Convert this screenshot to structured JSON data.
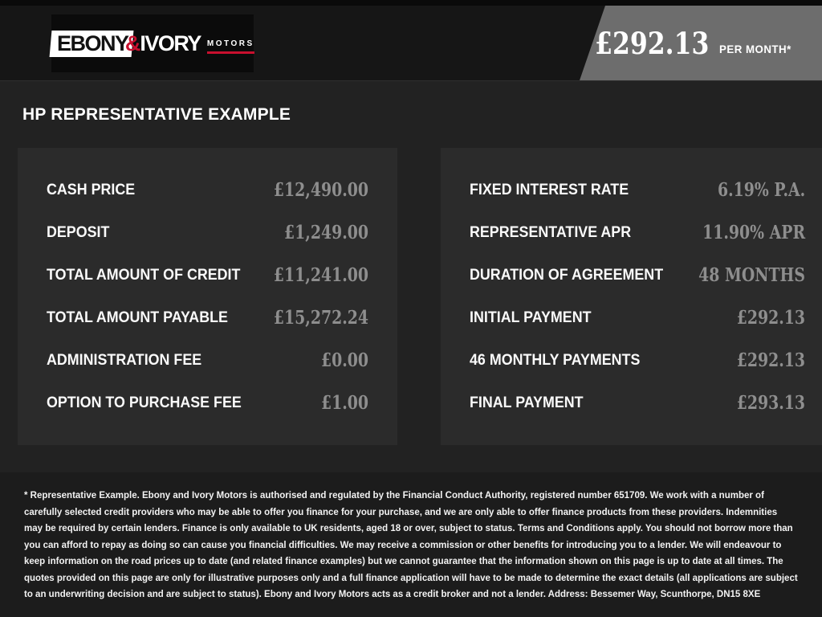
{
  "brand": {
    "name_primary": "EBONY",
    "ampersand": "&",
    "name_secondary": "IVORY",
    "name_suffix": "MOTORS"
  },
  "price_badge": {
    "amount": "£292.13",
    "period": "PER MONTH*"
  },
  "page_title": "HP REPRESENTATIVE EXAMPLE",
  "finance_left": {
    "rows": [
      {
        "label": "CASH PRICE",
        "value": "£12,490.00"
      },
      {
        "label": "DEPOSIT",
        "value": "£1,249.00"
      },
      {
        "label": "TOTAL AMOUNT OF CREDIT",
        "value": "£11,241.00"
      },
      {
        "label": "TOTAL AMOUNT PAYABLE",
        "value": "£15,272.24"
      },
      {
        "label": "ADMINISTRATION FEE",
        "value": "£0.00"
      },
      {
        "label": "OPTION TO PURCHASE FEE",
        "value": "£1.00"
      }
    ]
  },
  "finance_right": {
    "rows": [
      {
        "label": "FIXED INTEREST RATE",
        "value": "6.19% P.A."
      },
      {
        "label": "REPRESENTATIVE APR",
        "value": "11.90% APR"
      },
      {
        "label": "DURATION OF AGREEMENT",
        "value": "48 MONTHS"
      },
      {
        "label": "INITIAL PAYMENT",
        "value": "£292.13"
      },
      {
        "label": "46 MONTHLY PAYMENTS",
        "value": "£292.13"
      },
      {
        "label": "FINAL PAYMENT",
        "value": "£293.13"
      }
    ]
  },
  "disclaimer": "* Representative Example. Ebony and Ivory Motors is authorised and regulated by the Financial Conduct Authority, registered number 651709. We work with a number of carefully selected credit providers who may be able to offer you finance for your purchase, and we are only able to offer finance products from these providers. Indemnities may be required by certain lenders. Finance is only available to UK residents, aged 18 or over, subject to status. Terms and Conditions apply. You should not borrow more than you can afford to repay as doing so can cause you financial difficulties. We may receive a commission or other benefits for introducing you to a lender. We will endeavour to keep information on the road prices up to date (and related finance examples) but we cannot guarantee that the information shown on this page is up to date at all times. The quotes provided on this page are only for illustrative purposes only and a full finance application will have to be made to determine the exact details (all applications are subject to an underwriting decision and are subject to status). Ebony and Ivory Motors acts as a credit broker and not a lender. Address: Bessemer Way, Scunthorpe, DN15 8XE",
  "colors": {
    "accent_red": "#c8102e",
    "badge_gray": "#6d6d6d",
    "value_gray": "#8e8e8e",
    "header_bg": "#161616",
    "content_bg": "#222222",
    "panel_bg": "#2b2b2b",
    "disclaimer_bg": "#1c1c1c"
  }
}
